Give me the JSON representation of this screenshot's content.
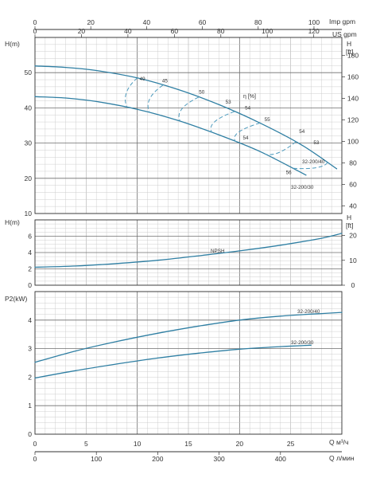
{
  "axes_labels": {
    "top_imp": "Imp gpm",
    "top_us": "US gpm",
    "head_left": "H(m)",
    "head_right": "H",
    "head_right_unit": "[ft]",
    "npsh_left": "H(m)",
    "npsh_right": "H",
    "npsh_right_unit": "[ft]",
    "power_left": "P2(kW)",
    "q_m3h": "Q  м³/ч",
    "q_lmin": "Q  л/мин"
  },
  "colors": {
    "curve": "#2f7fa3",
    "efficiency": "#4e9bbd",
    "grid_major": "#6e6e6e",
    "grid_minor": "#c9c9c9"
  },
  "chart_data": [
    {
      "id": "head",
      "type": "line",
      "xlabel": "Q м³/ч",
      "ylabel": "H(m)",
      "xlim": [
        0,
        30
      ],
      "ylim": [
        10,
        60
      ],
      "yticks": [
        10,
        20,
        30,
        40,
        50
      ],
      "secondary_y": {
        "label": "H [ft]",
        "ticks": [
          40,
          60,
          80,
          100,
          120,
          140,
          160,
          180
        ]
      },
      "series": [
        {
          "name": "32-200/40",
          "x": [
            0,
            3,
            6,
            10,
            14,
            18,
            22,
            26,
            29.5
          ],
          "y": [
            51.9,
            51.5,
            50.6,
            48.5,
            45.2,
            40.9,
            35.7,
            29.6,
            22.7
          ]
        },
        {
          "name": "32-200/30",
          "x": [
            0,
            3,
            6,
            10,
            14,
            18,
            22,
            26.5
          ],
          "y": [
            43.2,
            42.8,
            41.8,
            39.6,
            36.4,
            32.3,
            27.6,
            20.9
          ]
        }
      ],
      "efficiency_labels": [
        "49",
        "45",
        "50",
        "53",
        "54",
        "55",
        "54",
        "53",
        "54",
        "56"
      ],
      "efficiency_title": "η [%]"
    },
    {
      "id": "npsh",
      "type": "line",
      "ylabel": "H(m)",
      "xlim": [
        0,
        30
      ],
      "ylim": [
        0,
        8
      ],
      "yticks": [
        0,
        2,
        4,
        6
      ],
      "secondary_y": {
        "label": "H [ft]",
        "ticks": [
          0,
          10,
          20
        ]
      },
      "series": [
        {
          "name": "NPSH",
          "x": [
            0,
            4,
            8,
            12,
            16,
            20,
            24,
            28,
            30
          ],
          "y": [
            2.2,
            2.35,
            2.65,
            3.05,
            3.6,
            4.2,
            4.9,
            5.75,
            6.35
          ]
        }
      ]
    },
    {
      "id": "power",
      "type": "line",
      "ylabel": "P2(kW)",
      "xlim": [
        0,
        30
      ],
      "ylim": [
        0,
        5
      ],
      "yticks": [
        0,
        1,
        2,
        3,
        4
      ],
      "series": [
        {
          "name": "32-200/40",
          "x": [
            0,
            4,
            8,
            12,
            16,
            20,
            24,
            28,
            30
          ],
          "y": [
            2.52,
            2.92,
            3.25,
            3.54,
            3.79,
            4.0,
            4.14,
            4.23,
            4.27
          ]
        },
        {
          "name": "32-200/30",
          "x": [
            0,
            4,
            8,
            12,
            16,
            20,
            24,
            27
          ],
          "y": [
            1.97,
            2.23,
            2.46,
            2.67,
            2.84,
            2.98,
            3.07,
            3.12
          ]
        }
      ]
    }
  ],
  "x_scales": {
    "imp_gpm": [
      0,
      20,
      40,
      60,
      80,
      100
    ],
    "us_gpm": [
      0,
      20,
      40,
      60,
      80,
      100,
      120
    ],
    "m3h": [
      0,
      5,
      10,
      15,
      20,
      25
    ],
    "lmin": [
      0,
      100,
      200,
      300,
      400
    ]
  }
}
